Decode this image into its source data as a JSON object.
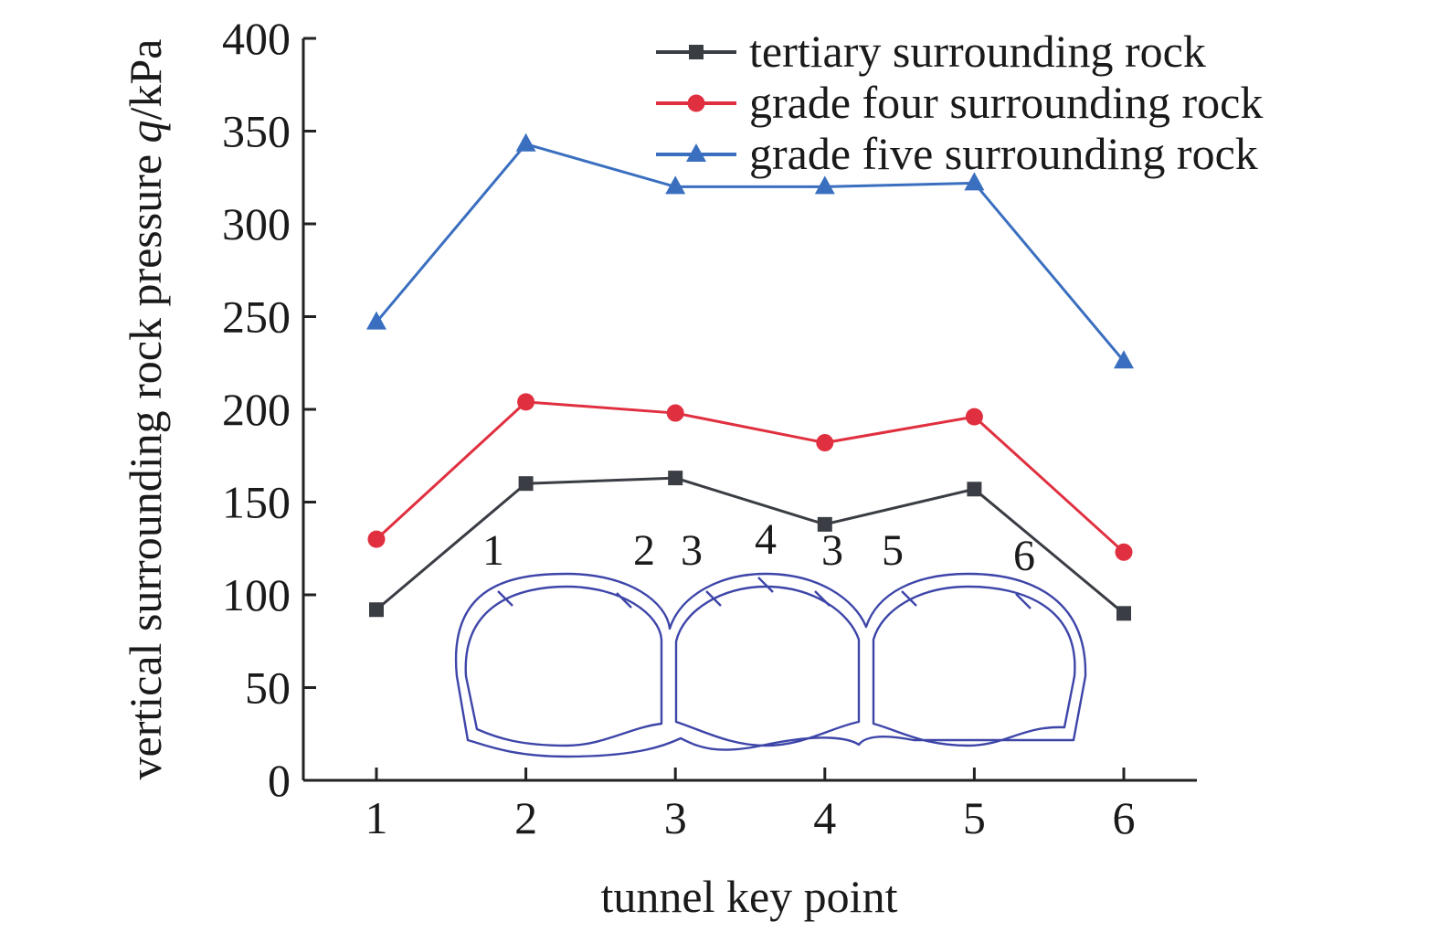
{
  "chart_data": {
    "type": "line",
    "title": "",
    "xlabel": "tunnel key point",
    "ylabel_prefix": "vertical surrounding rock pressure ",
    "ylabel_symbol": "q",
    "ylabel_unit": "/kPa",
    "categories": [
      "1",
      "2",
      "3",
      "4",
      "5",
      "6"
    ],
    "ylim": [
      0,
      400
    ],
    "yticks": [
      0,
      50,
      100,
      150,
      200,
      250,
      300,
      350,
      400
    ],
    "grid": false,
    "legend_position": "top-right",
    "series": [
      {
        "name": "tertiary surrounding rock",
        "marker": "square",
        "color": "#3a3d44",
        "values": [
          92,
          160,
          163,
          138,
          157,
          90
        ]
      },
      {
        "name": "grade four surrounding rock",
        "marker": "circle",
        "color": "#e03040",
        "values": [
          130,
          204,
          198,
          182,
          196,
          123
        ]
      },
      {
        "name": "grade five surrounding rock",
        "marker": "triangle",
        "color": "#3a6fc0",
        "values": [
          247,
          343,
          320,
          320,
          322,
          226
        ]
      }
    ],
    "inset": {
      "description_color": "#3d45a8",
      "point_labels": [
        "1",
        "2",
        "3",
        "4",
        "3",
        "5",
        "6"
      ]
    }
  }
}
